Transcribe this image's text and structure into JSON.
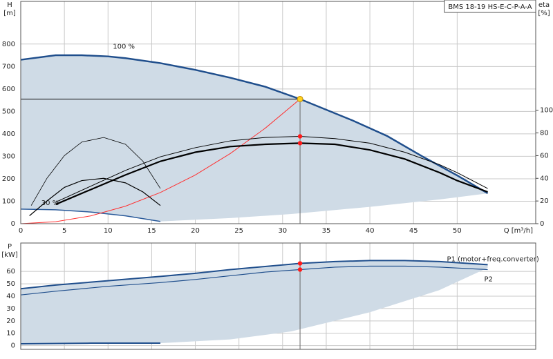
{
  "chart_data": [
    {
      "type": "line",
      "title": "BMS 18-19 HS-E-C-P-A-A",
      "y_label": "H",
      "y_unit": "[m]",
      "y2_label": "eta",
      "y2_unit": "[%]",
      "x_label": "Q [m³/h]",
      "xlim": [
        0,
        59
      ],
      "ylim": [
        0,
        990
      ],
      "y2lim": [
        0,
        196
      ],
      "xticks": [
        0,
        5,
        10,
        15,
        20,
        25,
        30,
        35,
        40,
        45,
        50
      ],
      "yticks": [
        0,
        100,
        200,
        300,
        400,
        500,
        600,
        700,
        800
      ],
      "y2ticks": [
        0,
        20,
        40,
        60,
        80,
        100
      ],
      "grid": true,
      "area_color": "#cfdbe6",
      "series": [
        {
          "name": "100 %",
          "color": "#1f4e8c",
          "width": 2.5,
          "x": [
            0,
            4,
            7,
            10,
            12,
            16,
            20,
            24,
            28,
            32,
            38,
            42,
            46,
            50,
            53.5
          ],
          "values": [
            730,
            750,
            750,
            745,
            737,
            715,
            685,
            650,
            610,
            555,
            460,
            390,
            300,
            215,
            135
          ]
        },
        {
          "name": "30 %",
          "color": "#2a5a9a",
          "width": 1.5,
          "x": [
            0,
            4,
            8,
            12,
            16
          ],
          "values": [
            65,
            62,
            52,
            35,
            10
          ]
        },
        {
          "color": "#ff3030",
          "width": 1,
          "x": [
            0,
            4,
            8,
            12,
            16,
            20,
            24,
            28,
            32
          ],
          "values": [
            0,
            8.7,
            34.7,
            78,
            138.8,
            216.8,
            312.2,
            424.9,
            555
          ]
        },
        {
          "color": "#000000",
          "width": 1,
          "axis": "y2",
          "x": [
            4,
            8,
            12,
            16,
            20,
            24,
            28,
            32,
            36,
            40,
            44,
            48,
            50,
            53.5
          ],
          "values": [
            19,
            33,
            47,
            59,
            67,
            73,
            76,
            77,
            75,
            71,
            63,
            52,
            45,
            31
          ]
        },
        {
          "color": "#000000",
          "width": 2.2,
          "axis": "y2",
          "x": [
            4,
            8,
            12,
            16,
            20,
            24,
            28,
            32,
            36,
            40,
            44,
            48,
            50,
            53.5
          ],
          "values": [
            17,
            30,
            43,
            55,
            63,
            68,
            70,
            71,
            70,
            65,
            57,
            45,
            38,
            28
          ]
        },
        {
          "color": "#000000",
          "width": 0.8,
          "axis": "y2",
          "x": [
            1.2,
            3,
            5,
            7,
            9.5,
            12,
            14,
            16
          ],
          "values": [
            16,
            40,
            60,
            72,
            76,
            70,
            55,
            31
          ]
        },
        {
          "color": "#000000",
          "width": 1.2,
          "axis": "y2",
          "x": [
            1,
            3,
            5,
            7,
            9.5,
            12,
            14,
            16
          ],
          "values": [
            7,
            20,
            32,
            38,
            40,
            36,
            28,
            16
          ]
        }
      ],
      "area_lower": {
        "x": [
          24,
          31,
          40,
          48,
          53.5
        ],
        "values": [
          25,
          43,
          75,
          108,
          135
        ]
      },
      "duty_point": {
        "x": 32,
        "y": 555,
        "eta": [
          77,
          71
        ]
      }
    },
    {
      "type": "line",
      "y_label": "P",
      "y_unit": "[kW]",
      "xlim": [
        0,
        59
      ],
      "ylim": [
        -3,
        83
      ],
      "xticks": [
        0,
        5,
        10,
        15,
        20,
        25,
        30,
        35,
        40,
        45,
        50
      ],
      "show_xtick_labels": false,
      "yticks": [
        0,
        10,
        20,
        30,
        40,
        50,
        60
      ],
      "grid": true,
      "area_color": "#cfdbe6",
      "series": [
        {
          "name": "P1 (motor+freq.converter)",
          "color": "#1f4e8c",
          "width": 2,
          "x": [
            0,
            4,
            10,
            16,
            20,
            24,
            28,
            32,
            36,
            40,
            44,
            48,
            53.5
          ],
          "values": [
            46,
            49,
            52.5,
            56,
            58.5,
            61.5,
            64,
            66.5,
            68,
            68.8,
            68.8,
            68,
            65.5
          ]
        },
        {
          "name": "P2",
          "color": "#1f4e8c",
          "width": 1.2,
          "x": [
            0,
            4,
            10,
            16,
            20,
            24,
            28,
            32,
            36,
            40,
            44,
            48,
            53.5
          ],
          "values": [
            41,
            44,
            48,
            51,
            53.5,
            56.5,
            59.5,
            61.5,
            63.5,
            64.3,
            64.3,
            63.5,
            61.5
          ]
        },
        {
          "color": "#1f4e8c",
          "width": 2,
          "x": [
            0,
            8,
            16
          ],
          "values": [
            1.5,
            2,
            2
          ]
        }
      ],
      "area_lower": {
        "x": [
          24,
          31,
          40,
          48,
          53.5
        ],
        "values": [
          5,
          11.5,
          27,
          45,
          63
        ]
      },
      "duty_point": {
        "x": 32,
        "values": [
          66.5,
          61.5
        ]
      }
    }
  ]
}
